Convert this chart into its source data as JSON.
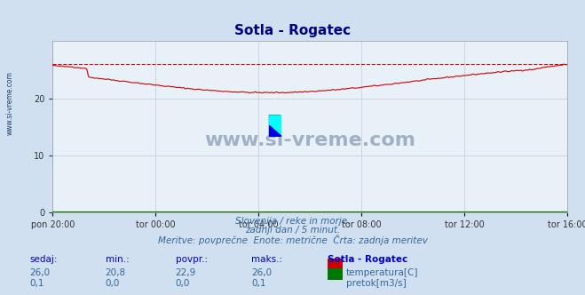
{
  "title": "Sotla - Rogatec",
  "title_color": "#000080",
  "bg_color": "#d0e0f0",
  "plot_bg_color": "#e8f0f8",
  "grid_color": "#c0c8d8",
  "x_labels": [
    "pon 20:00",
    "tor 00:00",
    "tor 04:00",
    "tor 08:00",
    "tor 12:00",
    "tor 16:00"
  ],
  "x_ticks_norm": [
    0.0,
    0.2,
    0.4,
    0.6,
    0.8,
    1.0
  ],
  "ylim": [
    0,
    30
  ],
  "yticks": [
    0,
    10,
    20
  ],
  "temp_max_line": 26.0,
  "temp_color": "#cc0000",
  "temp_dashed_color": "#cc0000",
  "flow_color": "#007700",
  "subtitle_lines": [
    "Slovenija / reke in morje.",
    "zadnji dan / 5 minut.",
    "Meritve: povprečne  Enote: metrične  Črta: zadnja meritev"
  ],
  "table_header": [
    "sedaj:",
    "min.:",
    "povpr.:",
    "maks.:",
    "Sotla - Rogatec"
  ],
  "table_row1": [
    "26,0",
    "20,8",
    "22,9",
    "26,0"
  ],
  "table_row2": [
    "0,1",
    "0,0",
    "0,0",
    "0,1"
  ],
  "legend_label1": "temperatura[C]",
  "legend_label2": "pretok[m3/s]",
  "watermark": "www.si-vreme.com",
  "watermark_color": "#1a3a6a",
  "left_label": "www.si-vreme.com",
  "left_label_color": "#1a3a6a"
}
